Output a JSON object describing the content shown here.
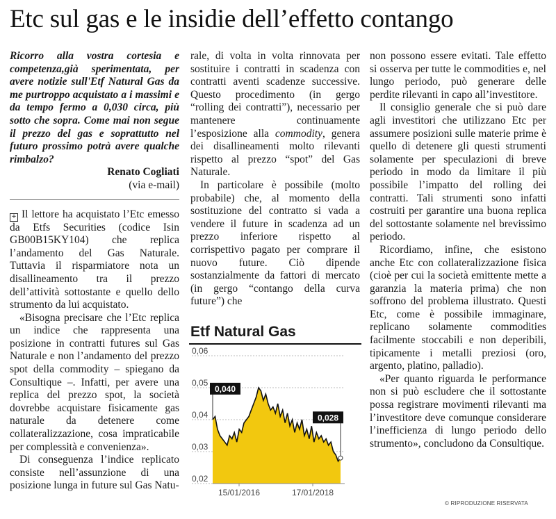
{
  "headline": "Etc sul gas e le insidie dell’effetto contango",
  "question": {
    "text": "Ricorro alla vostra cortesia e competenza,già sperimentata, per avere notizie sull'Etf Natural Gas da me purtroppo acquistato a i massimi e da tempo fermo a 0,030 circa, più sotto che sopra. Come mai non segue il prezzo del gas e soprattutto nel futuro prossimo potrà avere qualche rimbalzo?",
    "author": "Renato Cogliati",
    "via": "(via e-mail)"
  },
  "answer_marker": "+",
  "col1_paragraphs": [
    "Il lettore ha acquistato l’Etc emesso da Etfs Securities (codice Isin GB00B15KY104) che replica l’andamento del Gas Naturale. Tuttavia il risparmiatore nota un disallineamento tra il prezzo dell’attività sottostante e quello dello strumento da lui acquistato.",
    "«Bisogna precisare che l’Etc replica un indice che rappresenta una posizione in contratti futures sul Gas Naturale e non l’andamento del prezzo spot della commodity – spiegano da Consultique –. Infatti, per avere una replica del prezzo spot, la società dovrebbe acquistare fisicamente gas naturale da detenere come collateralizzazione, cosa impraticabile per complessità e convenienza».",
    "Di conseguenza l’indice replicato consiste nell’assunzione di una posizione lunga in future sul Gas Natu-"
  ],
  "col2_p1_before": "rale, di volta in volta rinnovata per sostituire i contratti in scadenza con contratti aventi scadenze successive. Questo procedimento (in gergo “rolling dei contratti”), necessario per mantenere continuamente l’esposizione alla ",
  "col2_p1_italic": "commodity",
  "col2_p1_after": ", genera dei disallineamenti molto rilevanti rispetto al prezzo “spot” del Gas Naturale.",
  "col2_p2": "In particolare è possibile (molto probabile) che, al momento della sostituzione del contratto si vada a vendere il future in scadenza ad un prezzo inferiore rispetto al corrispettivo pagato per comprare il nuovo future. Ciò dipende sostanzialmente da fattori di mercato (in gergo “contango della curva future”) che",
  "col3_paragraphs": [
    "non possono essere evitati. Tale effetto si osserva per tutte le commodities e, nel lungo periodo, può generare delle perdite rilevanti in capo all’investitore.",
    "Il consiglio generale che si può dare agli investitori che utilizzano Etc per assumere posizioni sulle materie prime è quello di detenere gli questi strumenti solamente per speculazioni di breve periodo in modo da limitare il più possibile l’impatto del rolling dei contratti. Tali strumenti sono infatti costruiti per garantire una buona replica del sottostante solamente nel brevissimo periodo.",
    "Ricordiamo, infine, che esistono anche Etc con collateralizzazione fisica (cioè per cui la società emittente mette a garanzia la materia prima) che non soffrono del problema illustrato. Questi Etc, come è possibile immaginare, replicano solamente commodities facilmente stoccabili e non deperibili, tipicamente i metalli preziosi (oro, argento, platino, palladio).",
    "«Per quanto riguarda le performance non si può escludere che il sottostante possa registrare movimenti rilevanti ma l’investitore deve comunque considerare l’inefficienza di lungo periodo dello strumento», concludono da Consultique."
  ],
  "copyright": "© RIPRODUZIONE RISERVATA",
  "chart_data": {
    "type": "area",
    "title": "Etf Natural Gas",
    "y_ticks": [
      "0,06",
      "0,05",
      "0,04",
      "0,03",
      "0,02"
    ],
    "ylim": [
      0.02,
      0.06
    ],
    "x_ticks": [
      "15/01/2016",
      "17/01/2018"
    ],
    "start_label": "0,040",
    "end_label": "0,028",
    "fill_color": "#f2c80f",
    "line_color": "#111111",
    "series": [
      {
        "values": [
          0.04,
          0.041,
          0.037,
          0.035,
          0.034,
          0.033,
          0.032,
          0.035,
          0.034,
          0.036,
          0.033,
          0.037,
          0.036,
          0.039,
          0.04,
          0.041,
          0.043,
          0.045,
          0.047,
          0.05,
          0.049,
          0.046,
          0.048,
          0.045,
          0.043,
          0.044,
          0.042,
          0.045,
          0.041,
          0.043,
          0.039,
          0.042,
          0.038,
          0.04,
          0.036,
          0.039,
          0.037,
          0.04,
          0.035,
          0.037,
          0.034,
          0.038,
          0.033,
          0.036,
          0.034,
          0.035,
          0.033,
          0.034,
          0.032,
          0.033,
          0.03,
          0.029,
          0.027,
          0.028
        ]
      }
    ]
  }
}
